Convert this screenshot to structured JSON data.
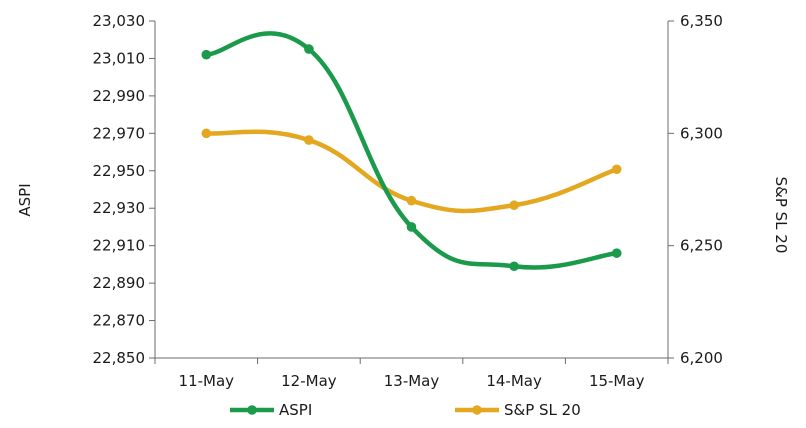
{
  "chart_data": {
    "type": "line",
    "categories": [
      "11-May",
      "12-May",
      "13-May",
      "14-May",
      "15-May"
    ],
    "series": [
      {
        "name": "ASPI",
        "axis": "left",
        "color": "#1a9a4a",
        "values": [
          23012,
          23015,
          22920,
          22899,
          22906
        ]
      },
      {
        "name": "S&P SL 20",
        "axis": "right",
        "color": "#e3a81f",
        "values": [
          6300,
          6297,
          6270,
          6268,
          6284
        ]
      }
    ],
    "ylabel": "ASPI",
    "ylabel_right": "S&P SL 20",
    "ylim": [
      22850,
      23030
    ],
    "ylim_right": [
      6200,
      6350
    ],
    "yticks": [
      "22,850",
      "22,870",
      "22,890",
      "22,910",
      "22,930",
      "22,950",
      "22,970",
      "22,990",
      "23,010",
      "23,030"
    ],
    "yticks_right": [
      "6,200",
      "6,250",
      "6,300",
      "6,350"
    ],
    "smooth": true,
    "markers": true,
    "grid": false,
    "legend": "bottom"
  }
}
